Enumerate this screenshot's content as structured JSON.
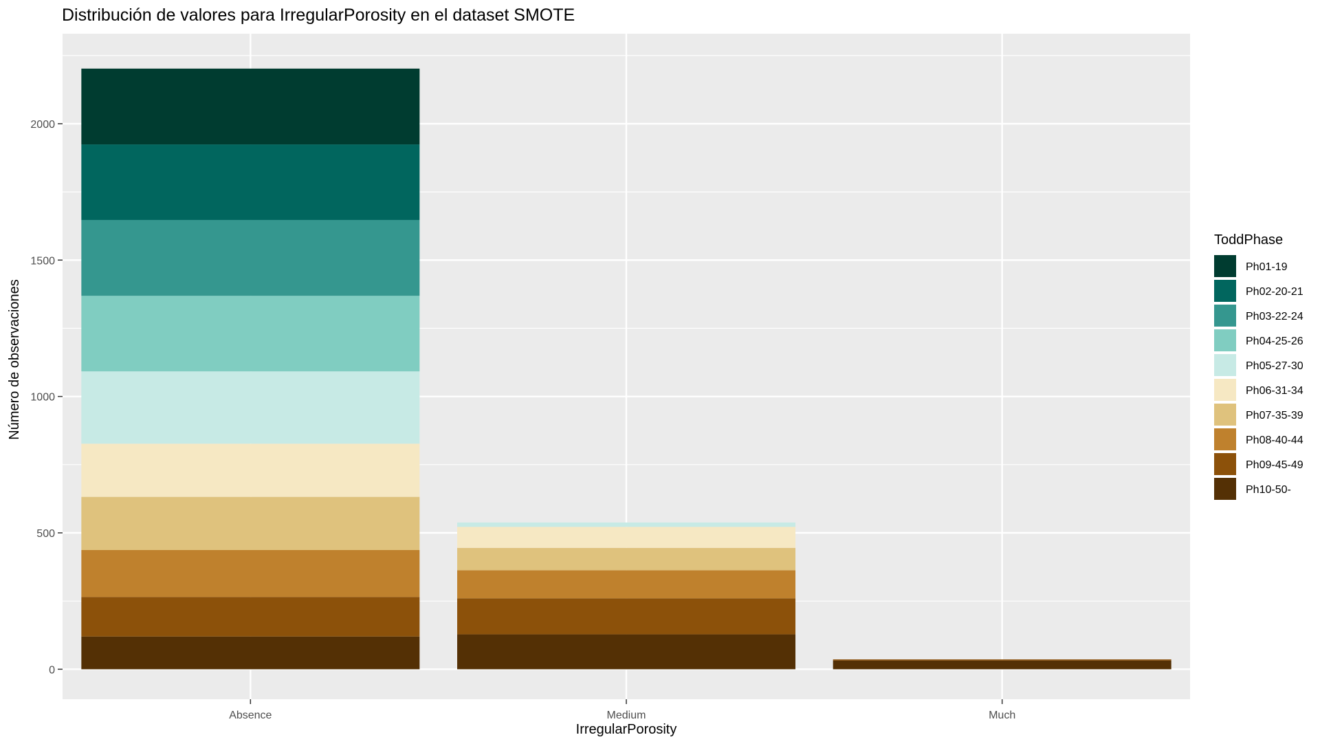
{
  "chart_data": {
    "type": "bar",
    "stacked": true,
    "title": "Distribución de valores para IrregularPorosity en el dataset SMOTE",
    "xlabel": "IrregularPorosity",
    "ylabel": "Número de observaciones",
    "categories": [
      "Absence",
      "Medium",
      "Much"
    ],
    "ylim": [
      -110,
      2330
    ],
    "yticks": [
      0,
      500,
      1000,
      1500,
      2000
    ],
    "yticklabels": [
      "0",
      "500",
      "1000",
      "1500",
      "2000"
    ],
    "legend": {
      "title": "ToddPhase",
      "position": "right"
    },
    "grid": true,
    "series": [
      {
        "name": "Ph01-19",
        "color": "#003C30",
        "values": [
          278,
          0,
          0
        ]
      },
      {
        "name": "Ph02-20-21",
        "color": "#01665E",
        "values": [
          277,
          0,
          0
        ]
      },
      {
        "name": "Ph03-22-24",
        "color": "#35978F",
        "values": [
          278,
          0,
          0
        ]
      },
      {
        "name": "Ph04-25-26",
        "color": "#80CDC1",
        "values": [
          277,
          0,
          0
        ]
      },
      {
        "name": "Ph05-27-30",
        "color": "#C7EAE5",
        "values": [
          265,
          16,
          0
        ]
      },
      {
        "name": "Ph06-31-34",
        "color": "#F6E8C3",
        "values": [
          195,
          77,
          0
        ]
      },
      {
        "name": "Ph07-35-39",
        "color": "#DFC27D",
        "values": [
          195,
          82,
          0
        ]
      },
      {
        "name": "Ph08-40-44",
        "color": "#BF812D",
        "values": [
          172,
          103,
          0
        ]
      },
      {
        "name": "Ph09-45-49",
        "color": "#8C510A",
        "values": [
          145,
          132,
          4
        ]
      },
      {
        "name": "Ph10-50-",
        "color": "#543005",
        "values": [
          120,
          128,
          32
        ]
      }
    ]
  }
}
